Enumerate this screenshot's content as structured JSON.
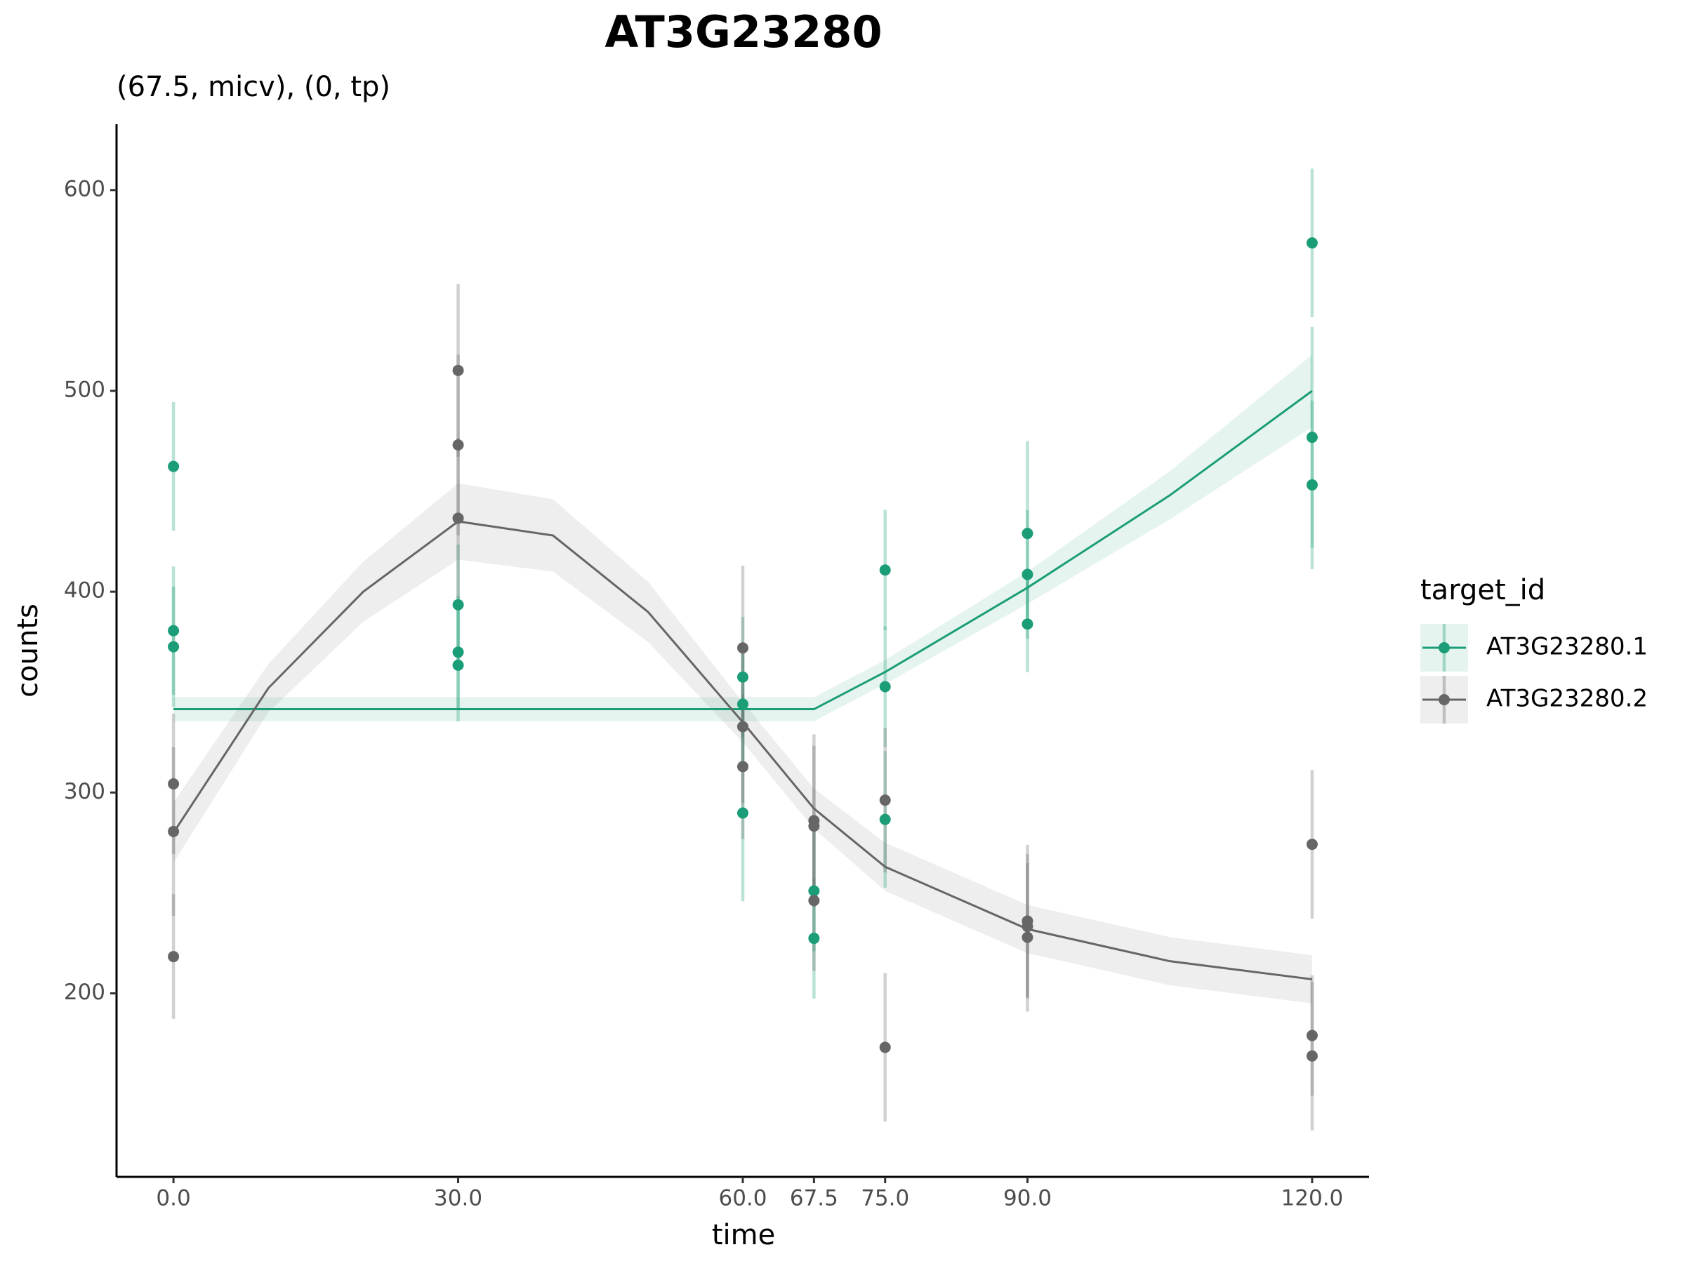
{
  "chart_data": {
    "type": "scatter",
    "title": "AT3G23280",
    "subtitle": "(67.5, micv), (0, tp)",
    "x_label": "time",
    "y_label": "counts",
    "legend_title": "target_id",
    "legend_position": "right",
    "grid": false,
    "xlim": [
      -6,
      126
    ],
    "ylim": [
      108.6,
      632.8
    ],
    "xticks": [
      {
        "value": 0,
        "label": "0.0"
      },
      {
        "value": 30,
        "label": "30.0"
      },
      {
        "value": 60,
        "label": "60.0"
      },
      67.5,
      {
        "value": 75,
        "label": "75.0"
      },
      {
        "value": 90,
        "label": "90.0"
      },
      {
        "value": 120,
        "label": "120.0"
      }
    ],
    "yticks": [
      200,
      300,
      400,
      500,
      600
    ],
    "series": [
      {
        "name": "AT3G23280.1",
        "color": "#1b9e77",
        "x": [
          0,
          0,
          0,
          30,
          30,
          30,
          60,
          60,
          60,
          67.5,
          67.5,
          75,
          75,
          75,
          90,
          90,
          90,
          120,
          120,
          120
        ],
        "values": [
          462.4,
          380.6,
          372.6,
          393.5,
          369.9,
          363.4,
          357.5,
          344,
          289.8,
          251,
          227.4,
          410.8,
          352.7,
          286.6,
          429,
          408.6,
          383.9,
          573.7,
          476.9,
          453.2
        ],
        "errors": [
          32,
          32,
          30,
          30,
          28,
          28,
          30,
          30,
          44,
          30,
          30,
          30,
          30,
          34,
          46,
          32,
          24,
          37,
          55,
          42
        ],
        "fit": {
          "x": [
            0,
            10,
            20,
            30,
            40,
            50,
            60,
            67.5,
            75,
            90,
            105,
            120
          ],
          "values": [
            341.5,
            341.5,
            341.5,
            341.5,
            341.5,
            341.5,
            341.5,
            341.5,
            360,
            402,
            448,
            500
          ],
          "lower": [
            335.5,
            335.5,
            335.5,
            335.5,
            335.5,
            335.5,
            335.5,
            335.5,
            354,
            394,
            436,
            482
          ],
          "upper": [
            347.5,
            347.5,
            347.5,
            347.5,
            347.5,
            347.5,
            347.5,
            347.5,
            366,
            410,
            460,
            518
          ]
        }
      },
      {
        "name": "AT3G23280.2",
        "color": "#666666",
        "x": [
          0,
          0,
          0,
          30,
          30,
          30,
          60,
          60,
          60,
          67.5,
          67.5,
          67.5,
          75,
          75,
          90,
          90,
          90,
          120,
          120,
          120
        ],
        "values": [
          304.3,
          280.6,
          218.3,
          510.2,
          473.1,
          436.6,
          372,
          332.8,
          312.9,
          286,
          283.3,
          246.2,
          296.2,
          173.1,
          236,
          233.3,
          227.9,
          274.2,
          179,
          168.8
        ],
        "errors": [
          35,
          42,
          31,
          43,
          45,
          40,
          41,
          38,
          36,
          43,
          40,
          35,
          36,
          37,
          38,
          36,
          37,
          37,
          30,
          37
        ],
        "fit": {
          "x": [
            0,
            10,
            20,
            30,
            40,
            50,
            60,
            67.5,
            75,
            90,
            105,
            120
          ],
          "values": [
            280,
            352,
            400,
            435,
            428,
            390,
            335,
            292,
            263,
            232,
            216,
            207
          ],
          "lower": [
            265,
            340,
            385,
            416,
            410,
            375,
            325,
            282,
            251,
            220,
            204,
            195
          ],
          "upper": [
            295,
            364,
            415,
            454,
            446,
            405,
            345,
            302,
            275,
            244,
            228,
            219
          ]
        }
      }
    ]
  }
}
